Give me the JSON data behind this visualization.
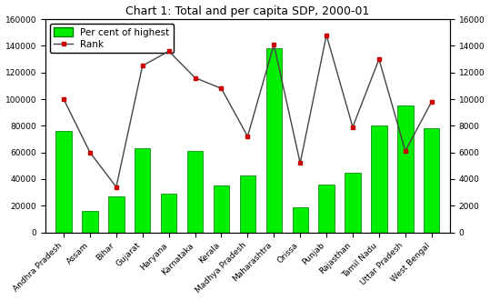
{
  "title": "Chart 1: Total and per capita SDP, 2000-01",
  "categories": [
    "Andhra Pradesh",
    "Assam",
    "Bihar",
    "Gujarat",
    "Haryana",
    "Karnataka",
    "Kerala",
    "Madhya Pradesh",
    "Maharashtra",
    "Orissa",
    "Punjab",
    "Rajasthan",
    "Tamil Nadu",
    "Uttar Pradesh",
    "West Bengal"
  ],
  "bar_values": [
    76000,
    16000,
    27000,
    63000,
    29000,
    61000,
    35000,
    43000,
    138000,
    19000,
    36000,
    45000,
    80000,
    95000,
    78000
  ],
  "line_values": [
    10000,
    6000,
    3400,
    12500,
    13600,
    11600,
    10800,
    7200,
    14100,
    5200,
    14800,
    7900,
    13000,
    6100,
    9800
  ],
  "bar_color": "#00EE00",
  "bar_edge_color": "#007700",
  "line_color": "#444444",
  "marker_color": "#CC0000",
  "marker_edge_color": "#CC0000",
  "left_ylim": [
    0,
    160000
  ],
  "right_ylim": [
    0,
    16000
  ],
  "left_yticks": [
    0,
    20000,
    40000,
    60000,
    80000,
    100000,
    120000,
    140000,
    160000
  ],
  "right_yticks": [
    0,
    2000,
    4000,
    6000,
    8000,
    10000,
    12000,
    14000,
    16000
  ],
  "legend_bar_label": "Per cent of highest",
  "legend_line_label": "Rank",
  "bg_color": "#ffffff",
  "plot_bg_color": "#ffffff",
  "title_fontsize": 9,
  "tick_fontsize": 6.5,
  "legend_fontsize": 7.5
}
